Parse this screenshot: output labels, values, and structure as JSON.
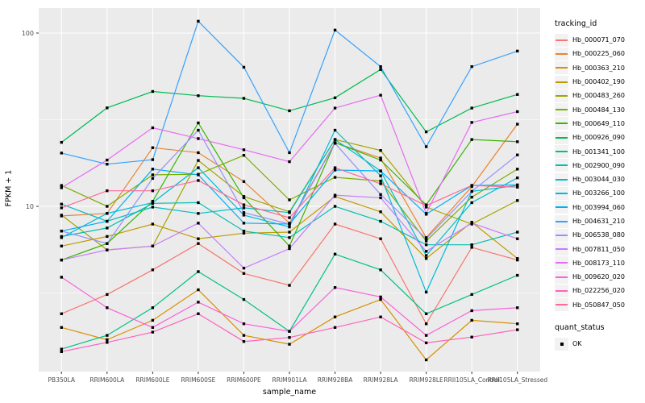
{
  "chart_data": {
    "type": "line",
    "title": "",
    "xlabel": "sample_name",
    "ylabel": "FPKM + 1",
    "y_scale": "log10",
    "y_tick_labels": [
      "100",
      "10"
    ],
    "y_tick_values": [
      100,
      10
    ],
    "ylim": [
      1.05,
      145
    ],
    "grid": "major-minor-white-on-grey",
    "panel_bg": "#EBEBEB",
    "grid_color": "#FFFFFF",
    "point_shape": "filled-square",
    "point_color": "#000000",
    "categories": [
      "PB350LA",
      "RRIM600LA",
      "RRIM600LE",
      "RRIM600SE",
      "RRIM600PE",
      "RRIM901LA",
      "RRIM928BA",
      "RRIM928LA",
      "RRIM928LE",
      "RRII105LA_Control",
      "RRII105LA_Stressed"
    ],
    "legend": {
      "series_title": "tracking_id",
      "shape_title": "quant_status",
      "shape_label": "OK",
      "position": "right"
    },
    "series": [
      {
        "name": "Hb_000071_070",
        "color": "#F8766D",
        "values": [
          2.4,
          3.1,
          4.3,
          6.1,
          4.1,
          3.5,
          7.9,
          6.5,
          2.1,
          5.8,
          4.9
        ]
      },
      {
        "name": "Hb_000225_060",
        "color": "#EA8331",
        "values": [
          8.8,
          9.1,
          21.8,
          20.4,
          13.9,
          8.0,
          23.3,
          19.0,
          6.6,
          13.0,
          29.8
        ]
      },
      {
        "name": "Hb_000363_210",
        "color": "#D89000",
        "values": [
          2.0,
          1.7,
          2.2,
          3.3,
          1.8,
          1.6,
          2.3,
          2.9,
          1.3,
          2.2,
          2.1
        ]
      },
      {
        "name": "Hb_000402_190",
        "color": "#C09B00",
        "values": [
          5.9,
          6.7,
          7.9,
          6.5,
          7.0,
          7.1,
          11.4,
          9.3,
          5.0,
          8.1,
          5.0
        ]
      },
      {
        "name": "Hb_000483_260",
        "color": "#A3A500",
        "values": [
          8.9,
          5.6,
          5.9,
          18.4,
          11.4,
          9.3,
          24.3,
          21.0,
          9.9,
          7.9,
          10.8
        ]
      },
      {
        "name": "Hb_000484_130",
        "color": "#7CAE00",
        "values": [
          13.2,
          10.0,
          15.2,
          15.3,
          19.7,
          10.9,
          14.7,
          14.0,
          6.3,
          11.3,
          16.4
        ]
      },
      {
        "name": "Hb_000649_110",
        "color": "#39B600",
        "values": [
          4.9,
          6.1,
          10.7,
          30.3,
          11.2,
          5.9,
          23.3,
          18.5,
          10.2,
          24.3,
          23.6
        ]
      },
      {
        "name": "Hb_000926_090",
        "color": "#00BB4E",
        "values": [
          23.4,
          37.0,
          46.0,
          43.5,
          42.0,
          35.6,
          42.3,
          61.6,
          26.9,
          36.9,
          44.2
        ]
      },
      {
        "name": "Hb_001341_100",
        "color": "#00C087",
        "values": [
          1.5,
          1.8,
          2.6,
          4.2,
          2.9,
          1.9,
          5.3,
          4.3,
          2.4,
          3.1,
          4.0
        ]
      },
      {
        "name": "Hb_002900_090",
        "color": "#00C0AF",
        "values": [
          6.7,
          7.5,
          10.4,
          10.5,
          7.2,
          6.6,
          10.0,
          8.2,
          6.0,
          6.0,
          7.1
        ]
      },
      {
        "name": "Hb_003044_030",
        "color": "#00BFC4",
        "values": [
          10.3,
          8.2,
          9.9,
          9.1,
          9.8,
          9.2,
          24.3,
          16.0,
          5.2,
          10.5,
          14.6
        ]
      },
      {
        "name": "Hb_003266_100",
        "color": "#00BBDA",
        "values": [
          6.6,
          9.1,
          10.5,
          16.7,
          8.9,
          7.6,
          27.5,
          15.0,
          3.2,
          12.2,
          13.2
        ]
      },
      {
        "name": "Hb_003994_060",
        "color": "#00B0F6",
        "values": [
          7.2,
          8.2,
          16.4,
          15.2,
          8.0,
          7.9,
          16.2,
          16.0,
          9.0,
          13.2,
          13.3
        ]
      },
      {
        "name": "Hb_004631_210",
        "color": "#35A2FF",
        "values": [
          20.3,
          17.5,
          18.6,
          117.0,
          63.5,
          20.4,
          104.0,
          64.0,
          22.1,
          64.0,
          78.7
        ]
      },
      {
        "name": "Hb_006538_080",
        "color": "#9590FF",
        "values": [
          7.2,
          6.1,
          14.5,
          27.5,
          9.2,
          7.9,
          23.1,
          11.7,
          6.5,
          12.2,
          19.8
        ]
      },
      {
        "name": "Hb_007811_050",
        "color": "#C77CFF",
        "values": [
          4.9,
          5.6,
          5.9,
          8.0,
          4.4,
          5.7,
          11.6,
          11.2,
          5.5,
          8.0,
          6.5
        ]
      },
      {
        "name": "Hb_008173_110",
        "color": "#E76BF3",
        "values": [
          12.8,
          18.5,
          28.4,
          24.6,
          21.2,
          18.1,
          36.9,
          43.8,
          9.1,
          30.5,
          35.2
        ]
      },
      {
        "name": "Hb_009620_020",
        "color": "#FA62DB",
        "values": [
          3.9,
          2.6,
          2.0,
          2.8,
          2.1,
          1.9,
          3.4,
          3.0,
          1.8,
          2.5,
          2.6
        ]
      },
      {
        "name": "Hb_022256_020",
        "color": "#FF62BC",
        "values": [
          1.45,
          1.64,
          1.88,
          2.4,
          1.66,
          1.75,
          2.0,
          2.3,
          1.63,
          1.76,
          1.94
        ]
      },
      {
        "name": "Hb_050847_050",
        "color": "#FF6A98",
        "values": [
          9.8,
          12.3,
          12.3,
          14.1,
          10.2,
          8.6,
          16.7,
          13.5,
          10.1,
          13.2,
          12.9
        ]
      }
    ]
  }
}
